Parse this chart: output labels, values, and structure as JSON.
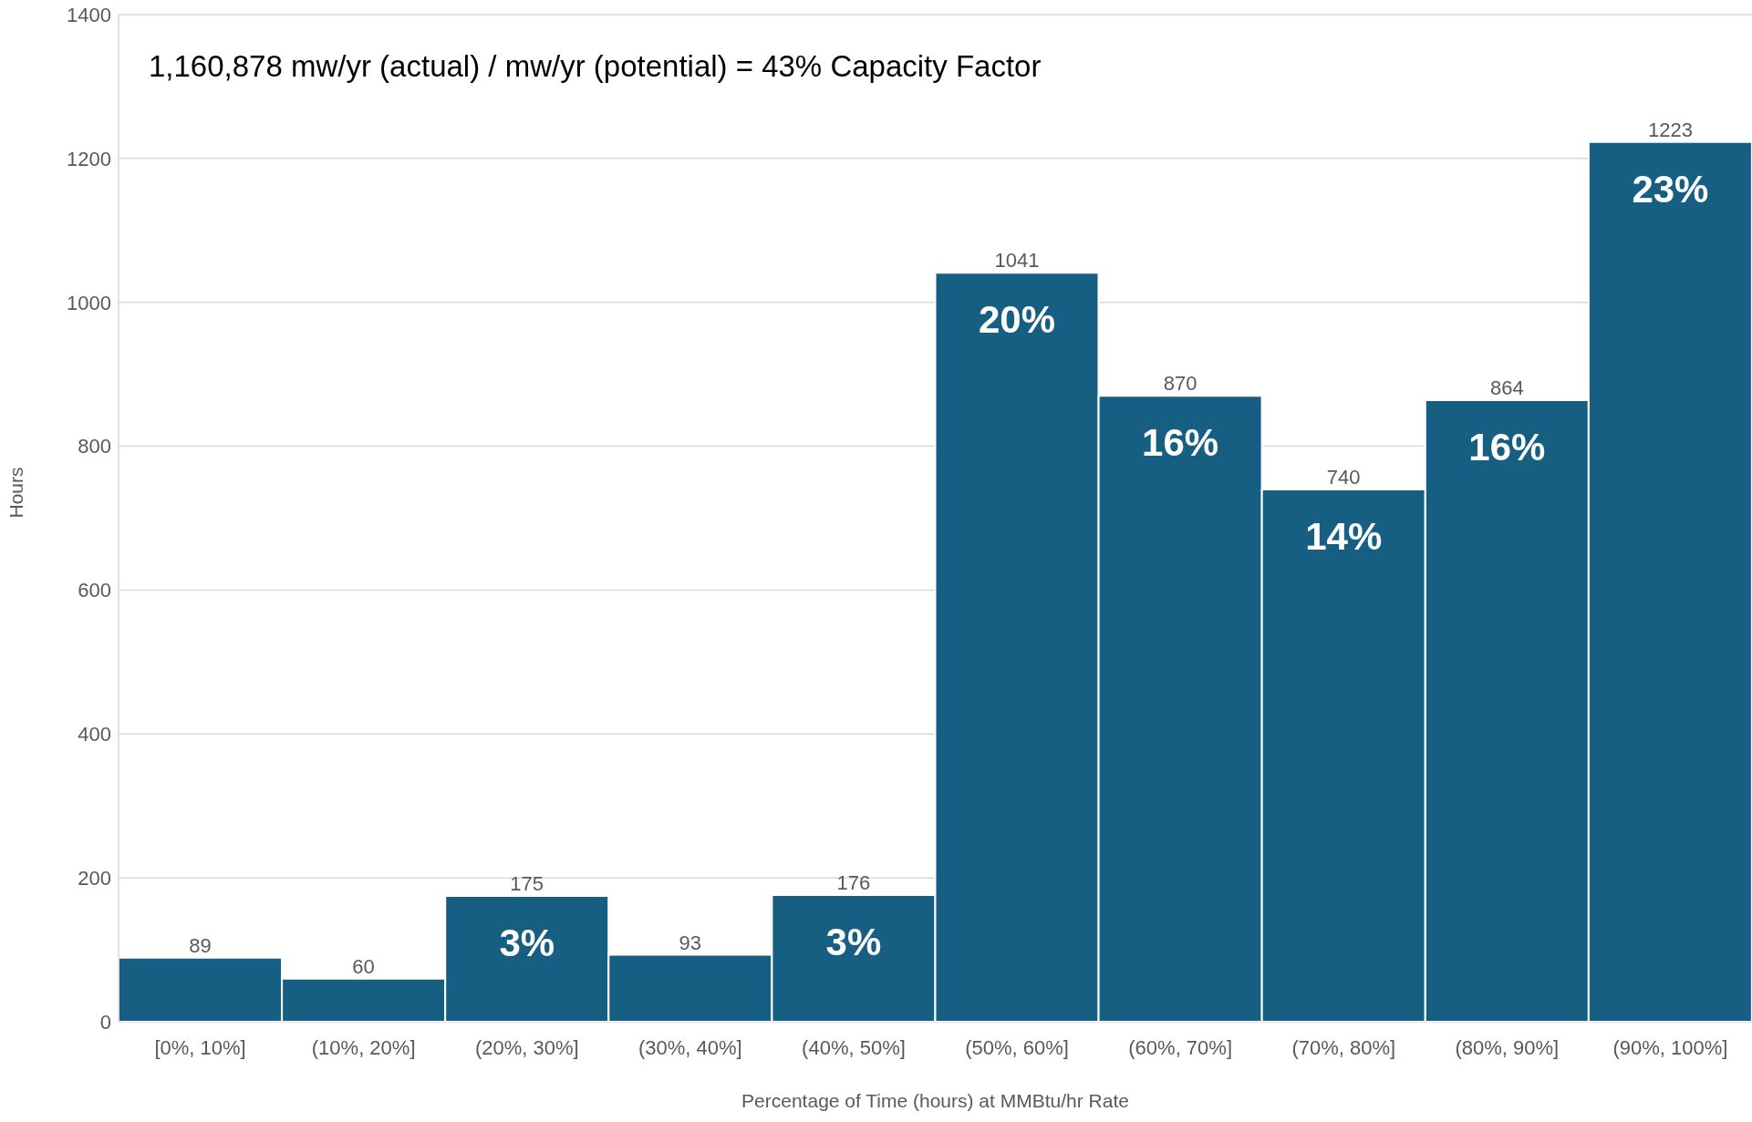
{
  "chart_data": {
    "type": "bar",
    "title": "1,160,878 mw/yr (actual) /  mw/yr (potential) = 43% Capacity Factor",
    "xlabel": "Percentage of Time (hours) at MMBtu/hr Rate",
    "ylabel": "Hours",
    "categories": [
      "[0%, 10%]",
      "(10%, 20%]",
      "(20%, 30%]",
      "(30%, 40%]",
      "(40%, 50%]",
      "(50%, 60%]",
      "(60%, 70%]",
      "(70%, 80%]",
      "(80%, 90%]",
      "(90%, 100%]"
    ],
    "values": [
      89,
      60,
      175,
      93,
      176,
      1041,
      870,
      740,
      864,
      1223
    ],
    "color": "#175f82",
    "ylim": [
      0,
      1400
    ],
    "yticks": [
      0,
      200,
      400,
      600,
      800,
      1000,
      1200,
      1400
    ],
    "grid": "y",
    "data_labels": true,
    "legend": false,
    "annotations": [
      {
        "text": "3%",
        "x": "(20%, 30%]",
        "y": 175
      },
      {
        "text": "3%",
        "x": "(40%, 50%]",
        "y": 176
      },
      {
        "text": "20%",
        "x": "(50%, 60%]",
        "y": 1041
      },
      {
        "text": "16%",
        "x": "(60%, 70%]",
        "y": 870
      },
      {
        "text": "14%",
        "x": "(70%, 80%]",
        "y": 740
      },
      {
        "text": "16%",
        "x": "(80%, 90%]",
        "y": 864
      },
      {
        "text": "23%",
        "x": "(90%, 100%]",
        "y": 1223
      }
    ]
  }
}
